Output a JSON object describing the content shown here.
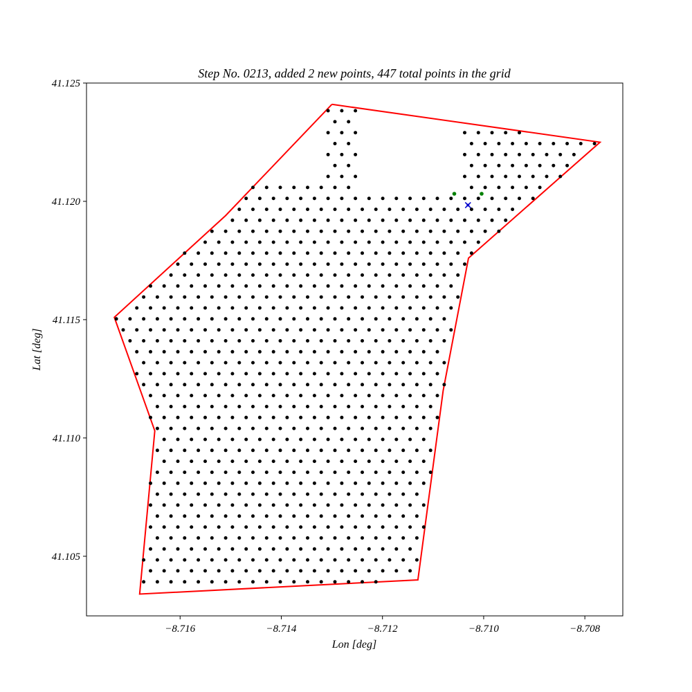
{
  "chart_data": {
    "type": "scatter",
    "title": "Step No. 0213, added 2 new points, 447 total points in the grid",
    "xlabel": "Lon [deg]",
    "ylabel": "Lat [deg]",
    "xlim": [
      -8.71785,
      -8.70725
    ],
    "ylim": [
      41.10248,
      41.125
    ],
    "xticks": [
      -8.716,
      -8.714,
      -8.712,
      -8.71,
      -8.708
    ],
    "xtick_labels": [
      "−8.716",
      "−8.714",
      "−8.712",
      "−8.710",
      "−8.708"
    ],
    "yticks": [
      41.105,
      41.11,
      41.115,
      41.12,
      41.125
    ],
    "ytick_labels": [
      "41.105",
      "41.110",
      "41.115",
      "41.120",
      "41.125"
    ],
    "grid": false,
    "boundary": {
      "color": "#ff0000",
      "points": [
        [
          -8.713,
          41.1241
        ],
        [
          -8.7077,
          41.1225
        ],
        [
          -8.7103,
          41.1176
        ],
        [
          -8.7108,
          41.112
        ],
        [
          -8.7113,
          41.104
        ],
        [
          -8.7168,
          41.1034
        ],
        [
          -8.7165,
          41.1103
        ],
        [
          -8.7173,
          41.1151
        ],
        [
          -8.7151,
          41.1194
        ],
        [
          -8.713,
          41.1241
        ]
      ]
    },
    "grid_spacing": {
      "dx": 0.00027,
      "dy": 0.000463,
      "lon0": -8.71645,
      "lat0": 41.10392,
      "rows": 44
    },
    "existing_points_color": "#000000",
    "new_points": {
      "color": "#008000",
      "points": [
        [
          -8.71058,
          41.12032
        ],
        [
          -8.71004,
          41.12032
        ]
      ]
    },
    "current_point": {
      "color": "#0000cc",
      "marker": "x",
      "point": [
        -8.71031,
        41.11984
      ]
    }
  }
}
